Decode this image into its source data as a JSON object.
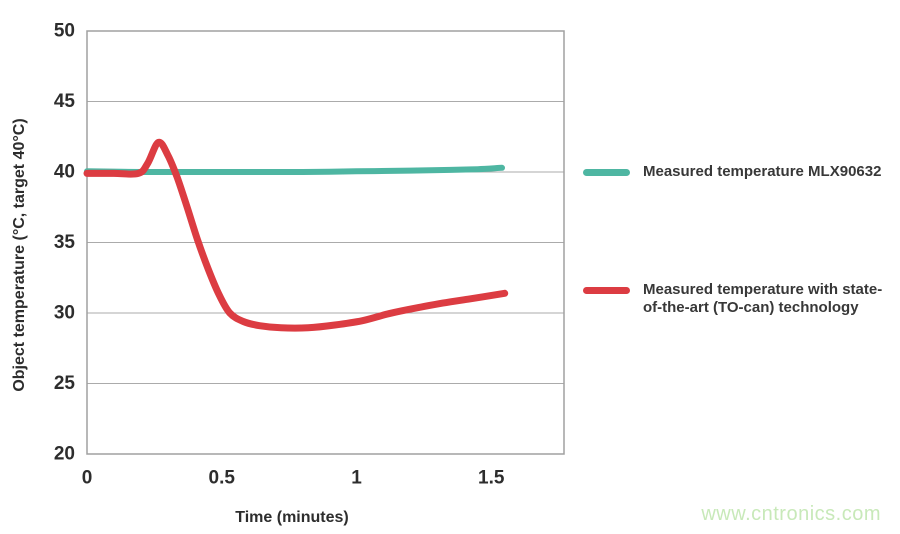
{
  "chart_data": {
    "type": "line",
    "title": "",
    "xlabel": "Time (minutes)",
    "ylabel": "Object temperature (°C, target 40°C)",
    "xlim": [
      0,
      1.77
    ],
    "ylim": [
      20,
      50
    ],
    "xticks": [
      0,
      0.5,
      1,
      1.5
    ],
    "xtick_labels": [
      "0",
      "0.5",
      "1",
      "1.5"
    ],
    "yticks": [
      20,
      25,
      30,
      35,
      40,
      45,
      50
    ],
    "grid": "horizontal",
    "legend_position": "right",
    "series": [
      {
        "name": "Measured temperature MLX90632",
        "color": "#4eb6a2",
        "width": 6,
        "points": [
          [
            0,
            40.05
          ],
          [
            0.2,
            40.0
          ],
          [
            0.4,
            40.0
          ],
          [
            0.6,
            40.0
          ],
          [
            0.8,
            40.0
          ],
          [
            1.0,
            40.05
          ],
          [
            1.2,
            40.1
          ],
          [
            1.35,
            40.15
          ],
          [
            1.45,
            40.2
          ],
          [
            1.54,
            40.3
          ]
        ]
      },
      {
        "name": "Measured temperature with state-of-the-art (TO-can) technology",
        "color": "#dc3c42",
        "width": 7,
        "points": [
          [
            0,
            39.9
          ],
          [
            0.1,
            39.9
          ],
          [
            0.19,
            39.9
          ],
          [
            0.225,
            40.6
          ],
          [
            0.265,
            42.1
          ],
          [
            0.3,
            41.2
          ],
          [
            0.335,
            39.6
          ],
          [
            0.37,
            37.6
          ],
          [
            0.41,
            35.2
          ],
          [
            0.45,
            33.1
          ],
          [
            0.49,
            31.3
          ],
          [
            0.53,
            30.0
          ],
          [
            0.58,
            29.4
          ],
          [
            0.64,
            29.1
          ],
          [
            0.72,
            28.95
          ],
          [
            0.82,
            28.95
          ],
          [
            0.92,
            29.15
          ],
          [
            1.02,
            29.45
          ],
          [
            1.12,
            29.95
          ],
          [
            1.22,
            30.35
          ],
          [
            1.32,
            30.7
          ],
          [
            1.42,
            31.0
          ],
          [
            1.55,
            31.4
          ]
        ]
      }
    ]
  },
  "legend": {
    "items": [
      {
        "color": "#4eb6a2",
        "lines": [
          "Measured temperature MLX90632"
        ]
      },
      {
        "color": "#dc3c42",
        "lines": [
          "Measured temperature with state-",
          "of-the-art (TO-can) technology"
        ]
      }
    ]
  },
  "watermark": {
    "text": "www.cntronics.com"
  },
  "colors": {
    "grid": "#ababab",
    "border": "#a0a0a0",
    "tick_text": "#2d2d2d",
    "legend_text": "#383838",
    "watermark": "#c8e9b9",
    "series_teal": "#4eb6a2",
    "series_red": "#dc3c42"
  }
}
